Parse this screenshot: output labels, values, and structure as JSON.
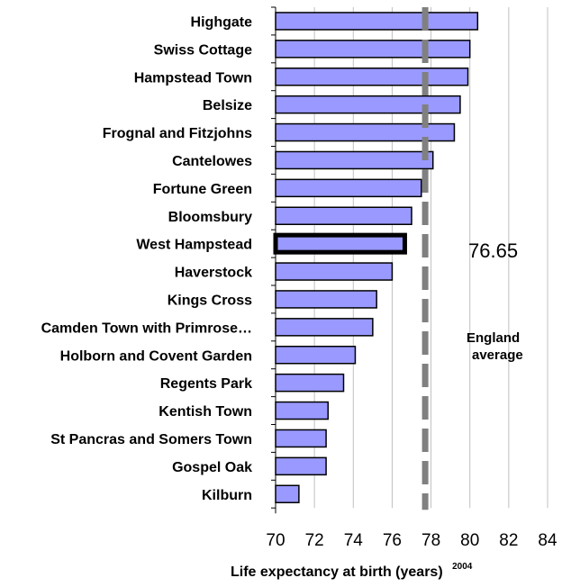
{
  "chart_data": {
    "type": "bar",
    "orientation": "horizontal",
    "categories": [
      "Highgate",
      "Swiss Cottage",
      "Hampstead Town",
      "Belsize",
      "Frognal and Fitzjohns",
      "Cantelowes",
      "Fortune Green",
      "Bloomsbury",
      "West Hampstead",
      "Haverstock",
      "Kings Cross",
      "Camden Town with Primrose…",
      "Holborn and Covent Garden",
      "Regents Park",
      "Kentish Town",
      "St Pancras and Somers Town",
      "Gospel Oak",
      "Kilburn"
    ],
    "values": [
      80.4,
      80.0,
      79.9,
      79.5,
      79.2,
      78.1,
      77.5,
      77.0,
      76.65,
      76.0,
      75.2,
      75.0,
      74.1,
      73.5,
      72.7,
      72.6,
      72.6,
      71.2
    ],
    "highlight": "West Hampstead",
    "xlim": [
      70,
      84
    ],
    "xticks": [
      "70",
      "72",
      "74",
      "76",
      "78",
      "80",
      "82",
      "84"
    ],
    "xlabel": "Life expectancy at birth (years)",
    "xlabel_superscript": "2004",
    "reference_line": {
      "value": 77.7,
      "label_line1": "England",
      "label_line2": "average",
      "style": "dashed"
    },
    "annotation_value": "76.65",
    "grid": true,
    "colors": {
      "bar_fill": "#9999ff",
      "bar_stroke": "#000000",
      "reference": "#808080",
      "grid": "#c0c0c0"
    }
  }
}
